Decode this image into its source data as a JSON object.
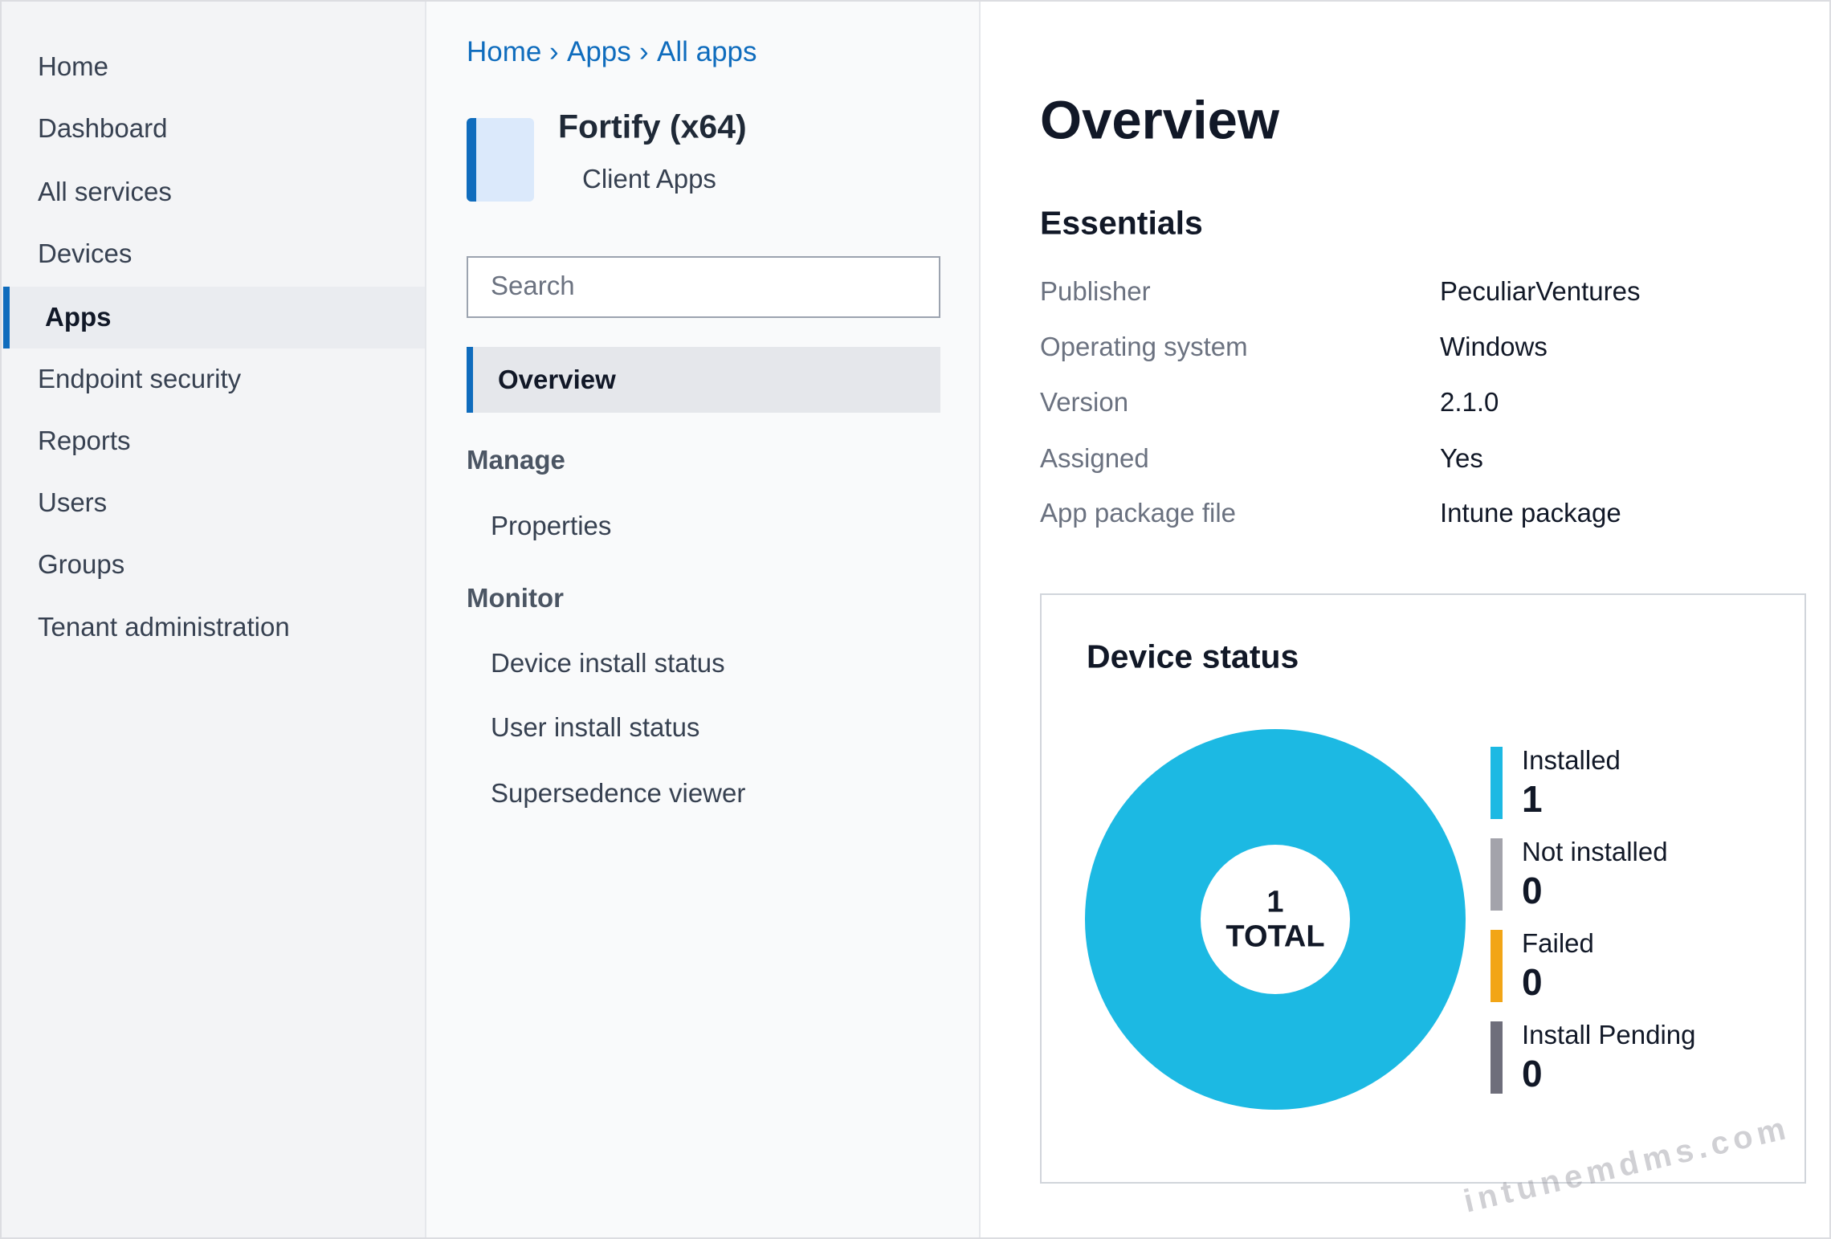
{
  "nav": {
    "items": [
      "Home",
      "Dashboard",
      "All services",
      "Devices",
      "Apps",
      "Endpoint security",
      "Reports",
      "Users",
      "Groups",
      "Tenant administration"
    ],
    "selected": 4
  },
  "breadcrumb": {
    "items": [
      "Home",
      "Apps",
      "All apps"
    ],
    "separator": "›"
  },
  "app": {
    "title": "Fortify (x64)",
    "subtitle": "Client Apps"
  },
  "search_placeholder": "Search",
  "menu": {
    "overview": "Overview",
    "sections": [
      {
        "title": "Manage",
        "items": [
          "Properties"
        ]
      },
      {
        "title": "Monitor",
        "items": [
          "Device install status",
          "User install status",
          "Supersedence viewer"
        ]
      }
    ]
  },
  "page_title": "Overview",
  "essentials": {
    "title": "Essentials",
    "rows": [
      [
        "Publisher",
        "PeculiarVentures"
      ],
      [
        "Operating system",
        "Windows"
      ],
      [
        "Version",
        "2.1.0"
      ],
      [
        "Assigned",
        "Yes"
      ],
      [
        "App package file",
        "Intune package"
      ]
    ]
  },
  "device_status": {
    "title": "Device status",
    "total": 1,
    "total_label": "TOTAL",
    "series": [
      {
        "name": "Installed",
        "color": "#1cb9e3",
        "value": 1
      },
      {
        "name": "Not installed",
        "color": "#a3a3ab",
        "value": 0
      },
      {
        "name": "Failed",
        "color": "#f2a516",
        "value": 0
      },
      {
        "name": "Install Pending",
        "color": "#6e6e7b",
        "value": 0
      }
    ]
  },
  "watermark": "intunemdms.com"
}
